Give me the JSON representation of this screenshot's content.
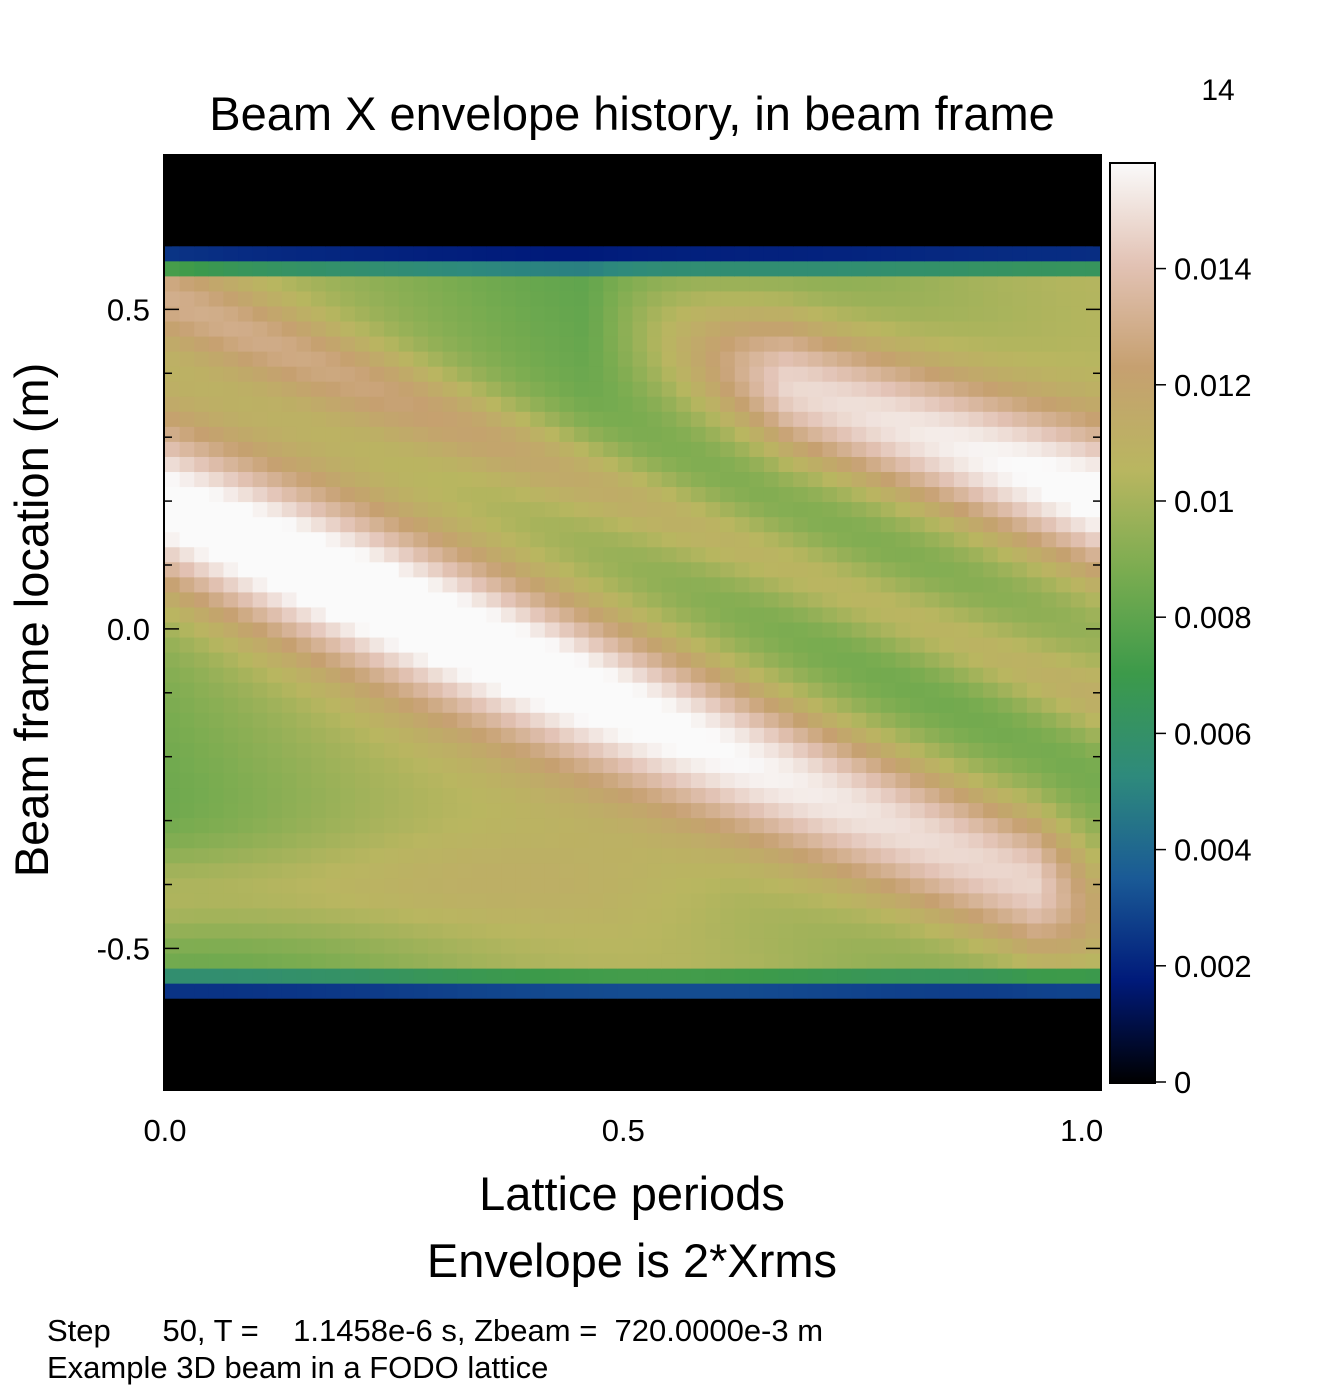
{
  "page_number": "14",
  "chart_data": {
    "type": "heatmap",
    "title": "Beam X envelope history, in beam frame",
    "xlabel": "Lattice periods",
    "ylabel": "Beam frame location (m)",
    "subtitle": "Envelope is 2*Xrms",
    "xlim": [
      0.0,
      1.02
    ],
    "ylim": [
      -0.72,
      0.74
    ],
    "x_ticks": [
      0.0,
      0.5,
      1.0
    ],
    "x_tick_labels": [
      "0.0",
      "0.5",
      "1.0"
    ],
    "y_ticks": [
      -0.5,
      0.0,
      0.5
    ],
    "y_tick_labels": [
      "-0.5",
      "0.0",
      "0.5"
    ],
    "grid": false,
    "colorbar": {
      "min": 0,
      "max": 0.0158,
      "ticks": [
        0,
        0.002,
        0.004,
        0.006,
        0.008,
        0.01,
        0.012,
        0.014
      ],
      "tick_labels": [
        "0",
        "0.002",
        "0.004",
        "0.006",
        "0.008",
        "0.01",
        "0.012",
        "0.014"
      ],
      "colors": [
        "#000000",
        "#001a7a",
        "#1a5a96",
        "#2e8a7c",
        "#3c9a4a",
        "#7aac50",
        "#b9b660",
        "#c6a070",
        "#e2c2b4",
        "#fafafa"
      ]
    },
    "beam_extent_m": [
      -0.585,
      0.6
    ],
    "ridges": [
      {
        "x_start": 0.0,
        "y_start": 0.19,
        "x_end": 0.95,
        "y_end": -0.4,
        "peak": 0.0158
      },
      {
        "x_start": 0.58,
        "y_start": 0.43,
        "x_end": 1.02,
        "y_end": 0.2,
        "peak": 0.0158
      }
    ]
  },
  "footer": {
    "line1": "Step      50, T =    1.1458e-6 s, Zbeam =  720.0000e-3 m",
    "line2": "Example 3D beam in a FODO lattice"
  }
}
